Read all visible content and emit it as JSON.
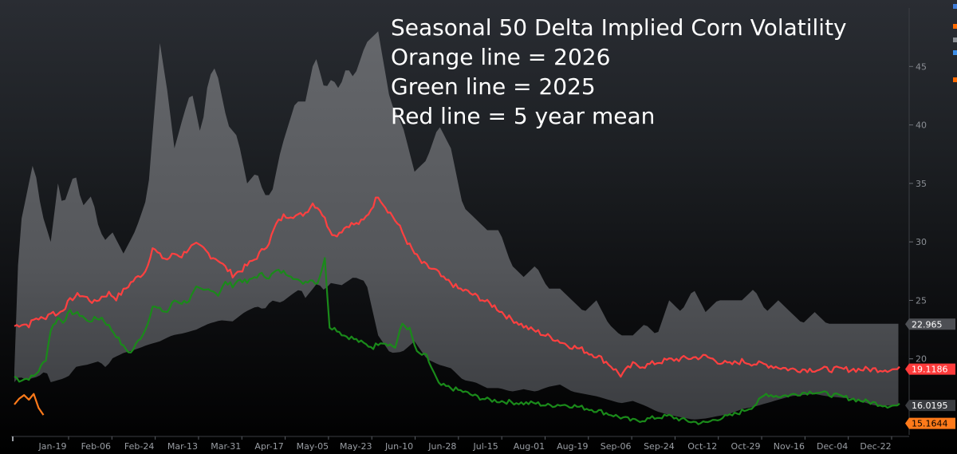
{
  "chart_data": {
    "type": "area",
    "title_lines": [
      "Seasonal 50 Delta Implied Corn Volatility",
      "Orange line = 2026",
      "Green line = 2025",
      "Red line = 5 year mean"
    ],
    "x_tick_labels": [
      "Jan-19",
      "Feb-06",
      "Feb-24",
      "Mar-13",
      "Mar-31",
      "Apr-17",
      "May-05",
      "May-23",
      "Jun-10",
      "Jun-28",
      "Jul-15",
      "Aug-01",
      "Aug-19",
      "Sep-06",
      "Sep-24",
      "Oct-12",
      "Oct-29",
      "Nov-16",
      "Dec-04",
      "Dec-22"
    ],
    "x_domain_days": [
      0,
      365
    ],
    "y_ticks": [
      20,
      25,
      30,
      35,
      40,
      45
    ],
    "y_range": [
      13.5,
      50
    ],
    "colors": {
      "band": "#5a5c60",
      "mean": "#ff4040",
      "y2025": "#1a8a1a",
      "y2026": "#ff7a1a",
      "axis_text": "#9a9ea4"
    },
    "value_labels": [
      {
        "text": "22.965",
        "series": "range_high",
        "value": 22.965,
        "bg": "#4d4f54",
        "fg": "#ffffff"
      },
      {
        "text": "19.1186",
        "series": "mean",
        "value": 19.1186,
        "bg": "#ff3b3b",
        "fg": "#ffffff"
      },
      {
        "text": "16.0195",
        "series": "year_2025",
        "value": 16.0195,
        "bg": "#3a3c40",
        "fg": "#ffffff"
      },
      {
        "text": "15.1644",
        "series": "year_2026",
        "value": 15.1644,
        "bg": "#ff7a1a",
        "fg": "#000000"
      }
    ],
    "series": [
      {
        "name": "range_high",
        "x": [
          0,
          2,
          4,
          8,
          10,
          12,
          15,
          18,
          20,
          25,
          28,
          32,
          35,
          38,
          40,
          45,
          50,
          55,
          60,
          63,
          66,
          70,
          73,
          77,
          80,
          83,
          85,
          88,
          92,
          96,
          100,
          103,
          106,
          110,
          113,
          116,
          120,
          124,
          128,
          131,
          134,
          137,
          140,
          145,
          150,
          155,
          160,
          165,
          170,
          175,
          180,
          185,
          190,
          195,
          200,
          205,
          210,
          215,
          220,
          225,
          230,
          235,
          240,
          245,
          250,
          255,
          260,
          265,
          270,
          275,
          280,
          285,
          290,
          295,
          300,
          305,
          310,
          315,
          320,
          325,
          330,
          335,
          340,
          345,
          350,
          355,
          360,
          365
        ],
        "values": [
          19,
          31,
          33,
          37,
          34,
          32,
          30,
          35,
          33,
          36,
          33,
          34,
          31,
          30,
          31,
          29,
          31,
          34,
          47,
          43,
          38,
          41,
          43,
          39,
          44,
          45,
          43,
          40,
          39,
          35,
          36,
          34,
          34,
          38,
          40,
          42,
          42,
          46,
          43,
          44,
          43,
          45,
          44,
          47,
          48,
          42,
          40,
          36,
          37,
          40,
          38,
          33,
          32,
          31,
          31,
          28,
          27,
          28,
          26,
          26,
          25,
          24,
          25,
          23,
          22,
          22,
          23,
          22,
          25,
          24,
          26,
          24,
          25,
          25,
          25,
          26,
          24,
          25,
          24,
          23,
          24,
          23,
          23,
          23,
          23,
          23,
          23,
          23
        ]
      },
      {
        "name": "range_low",
        "x": [
          0,
          2,
          5,
          10,
          13,
          15,
          20,
          23,
          25,
          30,
          35,
          38,
          40,
          45,
          50,
          55,
          60,
          65,
          70,
          75,
          80,
          85,
          90,
          95,
          100,
          103,
          106,
          110,
          115,
          118,
          120,
          125,
          128,
          130,
          135,
          140,
          145,
          150,
          155,
          160,
          165,
          170,
          175,
          180,
          185,
          190,
          195,
          200,
          205,
          210,
          215,
          220,
          225,
          230,
          235,
          240,
          245,
          250,
          255,
          260,
          265,
          270,
          275,
          280,
          285,
          290,
          295,
          300,
          305,
          310,
          315,
          320,
          325,
          330,
          335,
          340,
          345,
          350,
          355,
          360,
          365
        ],
        "values": [
          18,
          18.5,
          18.2,
          18.5,
          19,
          18,
          18.3,
          18.6,
          19.3,
          19.5,
          19.8,
          19.2,
          20,
          20.5,
          20.8,
          21.2,
          21.5,
          22,
          22.2,
          22.5,
          23,
          23.3,
          23.2,
          24,
          24.5,
          24.2,
          25,
          24.8,
          25.6,
          26,
          25.2,
          26.5,
          25.8,
          26.5,
          26.3,
          27,
          26.6,
          22,
          20.5,
          20.6,
          21.5,
          20,
          19.5,
          19.2,
          18.2,
          18,
          17.5,
          17.5,
          17.2,
          17.4,
          17.2,
          17.6,
          17.8,
          17.2,
          17,
          16.8,
          16.5,
          16.2,
          16.4,
          16,
          15.5,
          15.2,
          15,
          14.8,
          14.9,
          15.1,
          15.3,
          15.7,
          15.9,
          16.2,
          16.5,
          16.8,
          16.9,
          17,
          16.8,
          16.7,
          16.6,
          16.3,
          16,
          16,
          16
        ]
      },
      {
        "name": "mean",
        "x": [
          0,
          3,
          6,
          9,
          12,
          15,
          18,
          21,
          24,
          27,
          30,
          33,
          36,
          39,
          42,
          45,
          48,
          51,
          54,
          57,
          60,
          63,
          66,
          69,
          72,
          75,
          78,
          81,
          84,
          87,
          90,
          93,
          96,
          99,
          102,
          105,
          108,
          111,
          114,
          117,
          120,
          123,
          126,
          129,
          132,
          135,
          138,
          141,
          144,
          147,
          150,
          153,
          156,
          159,
          162,
          165,
          168,
          171,
          174,
          177,
          180,
          183,
          186,
          189,
          192,
          195,
          198,
          201,
          204,
          207,
          210,
          213,
          216,
          219,
          222,
          225,
          228,
          231,
          234,
          237,
          240,
          245,
          250,
          255,
          260,
          265,
          270,
          275,
          280,
          285,
          290,
          295,
          300,
          305,
          310,
          315,
          320,
          325,
          330,
          335,
          340,
          345,
          350,
          355,
          360,
          365
        ],
        "values": [
          22.8,
          23,
          22.9,
          23.5,
          23.4,
          24,
          23.8,
          24.5,
          25.2,
          25.5,
          25.2,
          24.8,
          25.3,
          25.6,
          25.2,
          25.8,
          26.5,
          27,
          27.5,
          29.5,
          28.8,
          28.5,
          29,
          28.8,
          29.5,
          29.7,
          29.4,
          28.8,
          28.5,
          27.8,
          27.2,
          27.5,
          28,
          28.5,
          29.2,
          30,
          31.5,
          32.2,
          32.3,
          32.2,
          32.5,
          33.3,
          32.8,
          31.5,
          30.5,
          31,
          31.5,
          31.5,
          31.8,
          32.8,
          34,
          33,
          32.2,
          31.2,
          30,
          29,
          28.2,
          27.8,
          27.5,
          26.8,
          26.5,
          26,
          25.8,
          25.5,
          25.2,
          24.8,
          24.5,
          24,
          23.5,
          23.2,
          22.8,
          22.5,
          22.3,
          22,
          21.8,
          21.5,
          21.2,
          21,
          20.8,
          20.5,
          20.3,
          19.6,
          18.6,
          19.5,
          19.4,
          19.7,
          19.9,
          20,
          20.1,
          20.2,
          19.8,
          19.5,
          19.8,
          19.6,
          19.5,
          19.3,
          19.1,
          19.1,
          19.1,
          19.1,
          19.1,
          19.1,
          19.1,
          19.1,
          19.1,
          19.1
        ]
      },
      {
        "name": "year_2025",
        "x": [
          0,
          2,
          5,
          8,
          10,
          13,
          15,
          18,
          20,
          23,
          25,
          28,
          30,
          33,
          36,
          39,
          42,
          45,
          48,
          51,
          54,
          57,
          60,
          63,
          66,
          69,
          72,
          75,
          78,
          81,
          84,
          87,
          90,
          93,
          96,
          99,
          102,
          105,
          108,
          111,
          114,
          116,
          118,
          120,
          122,
          125,
          128,
          130,
          133,
          136,
          139,
          142,
          145,
          148,
          151,
          154,
          157,
          160,
          163,
          166,
          170,
          175,
          180,
          185,
          190,
          195,
          200,
          205,
          210,
          215,
          220,
          225,
          230,
          235,
          240,
          245,
          250,
          255,
          260,
          265,
          270,
          275,
          280,
          285,
          290,
          295,
          300,
          305,
          310,
          315,
          320,
          325,
          330,
          335,
          340,
          345,
          350,
          355,
          360,
          365
        ],
        "values": [
          18.5,
          18.2,
          18.3,
          18.5,
          19,
          20,
          22.5,
          23.5,
          23.2,
          24,
          23.9,
          23.7,
          23.2,
          23.4,
          23.5,
          22.8,
          22,
          21,
          20.5,
          21.5,
          22.5,
          24.5,
          24.2,
          24,
          25,
          24.8,
          25,
          26,
          25.8,
          26,
          25.5,
          26.5,
          26.3,
          26.8,
          26.5,
          27,
          27.2,
          27,
          27.5,
          27.4,
          27.2,
          26.8,
          26.5,
          26.6,
          26.8,
          26.5,
          28.5,
          22.8,
          22.5,
          22,
          21.8,
          21.5,
          21.2,
          21,
          21.5,
          21.3,
          21,
          23,
          22.5,
          20.5,
          20.2,
          17.8,
          17.5,
          17.2,
          16.8,
          16.5,
          16.4,
          16.3,
          16.2,
          16.2,
          16.0,
          16.1,
          16.0,
          15.8,
          15.6,
          15.3,
          15.0,
          14.7,
          14.8,
          15.0,
          15.1,
          14.8,
          14.6,
          14.5,
          14.9,
          15.1,
          15.5,
          16.0,
          17.0,
          16.8,
          16.9,
          17.1,
          17.2,
          17.0,
          16.8,
          16.6,
          16.4,
          16.2,
          16.0,
          16.0
        ]
      },
      {
        "name": "year_2026",
        "x": [
          0,
          2,
          4,
          6,
          8,
          10,
          12
        ],
        "values": [
          16.1,
          16.6,
          16.9,
          16.5,
          17.0,
          15.8,
          15.2
        ]
      }
    ]
  }
}
